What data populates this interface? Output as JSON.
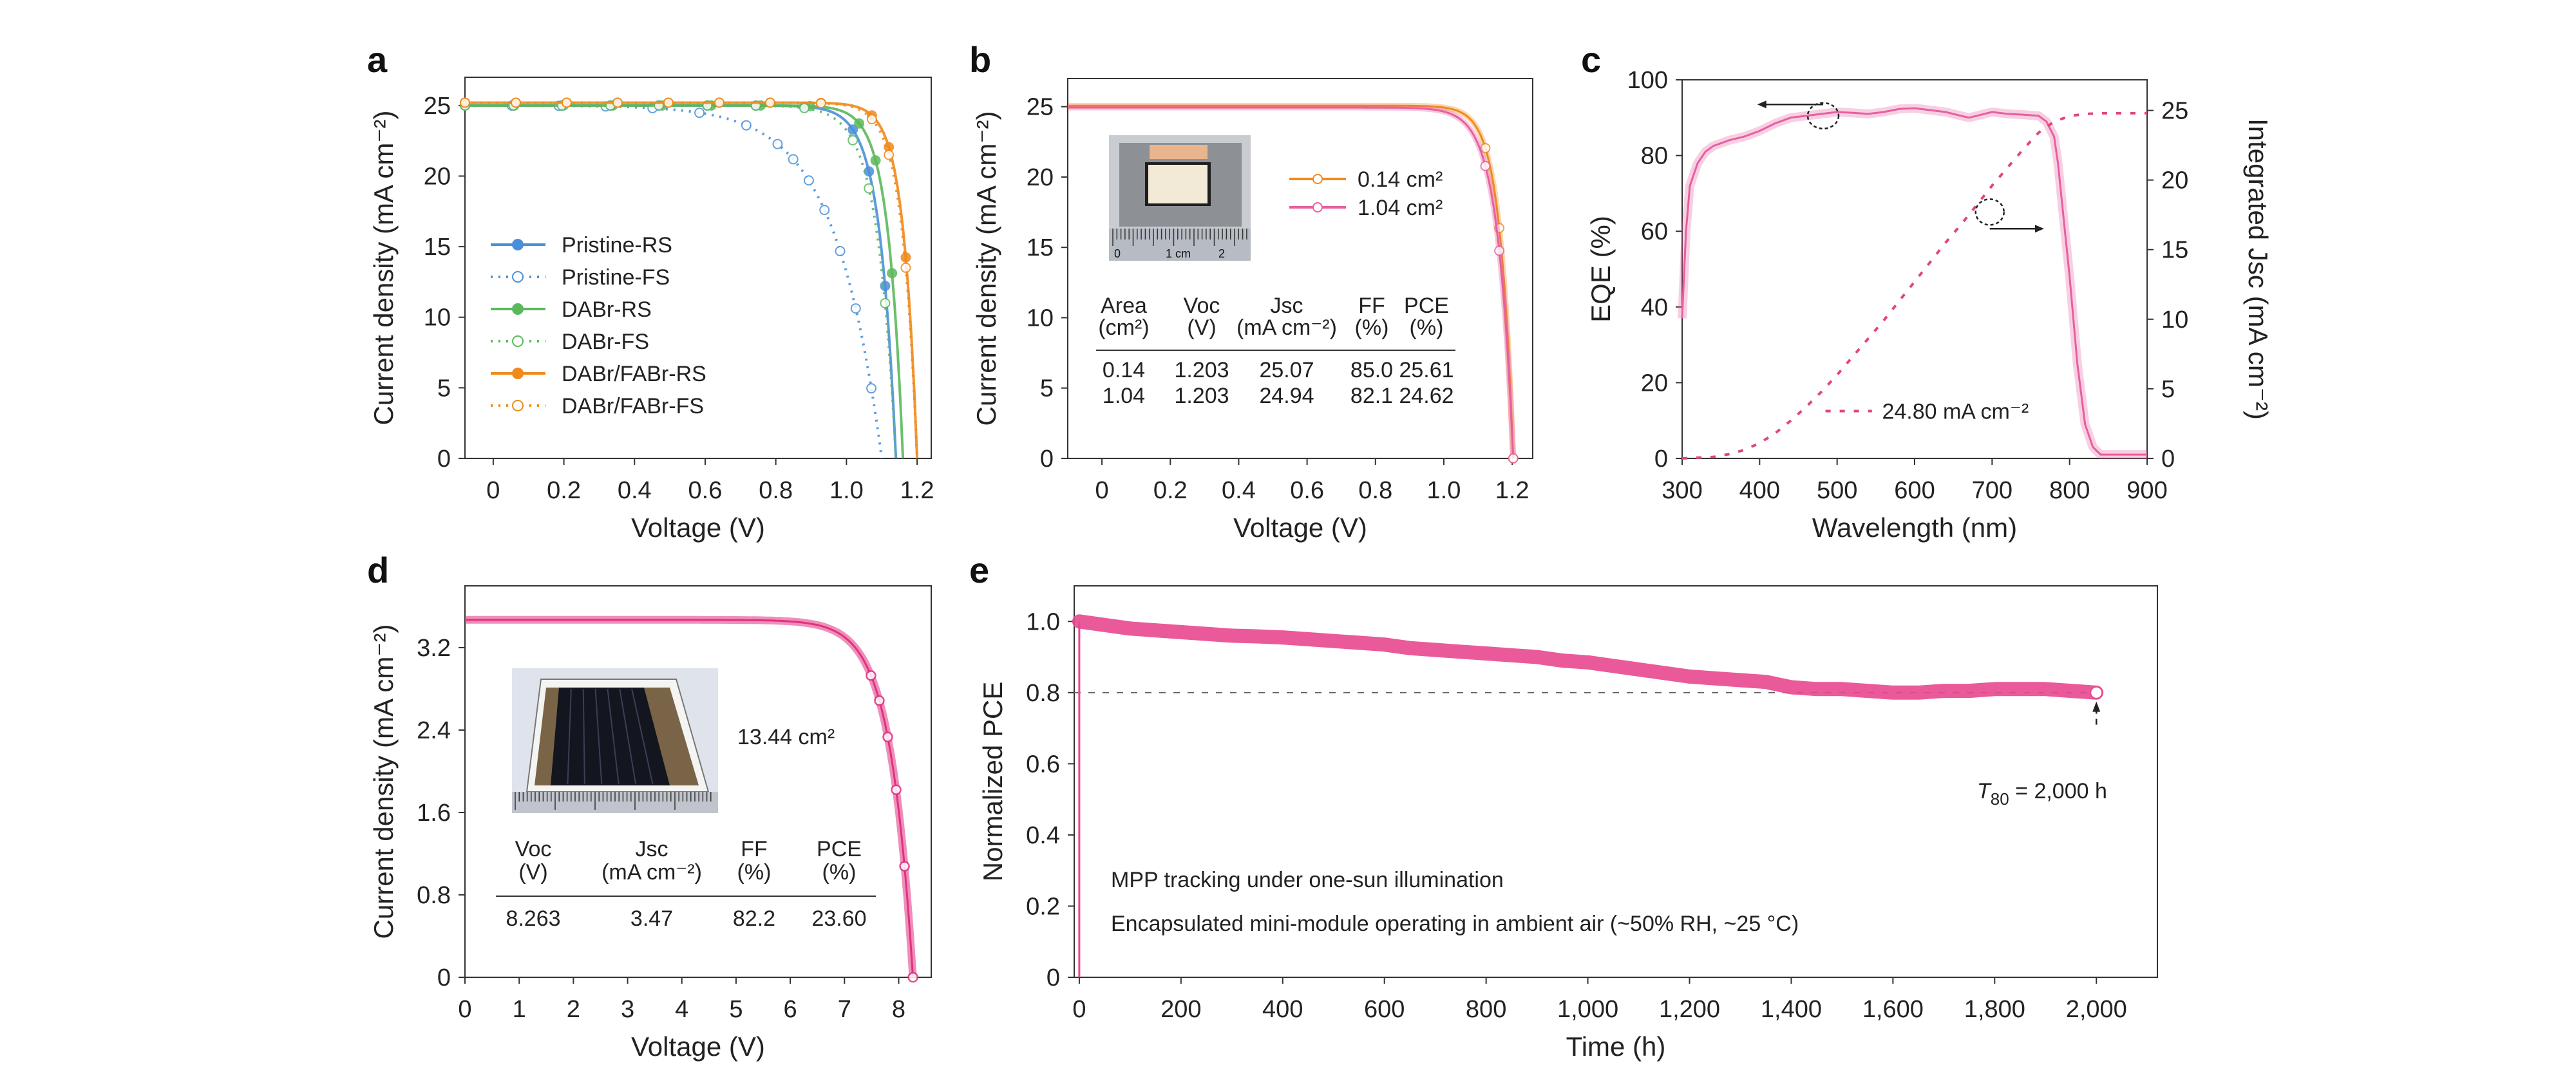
{
  "chart_data": [
    {
      "panel": "a",
      "type": "line",
      "xlabel": "Voltage (V)",
      "ylabel": "Current density (mA cm⁻²)",
      "xlim": [
        -0.08,
        1.24
      ],
      "ylim": [
        0,
        27
      ],
      "xticks": [
        "0",
        "0.2",
        "0.4",
        "0.6",
        "0.8",
        "1.0",
        "1.2"
      ],
      "xtick_values": [
        0,
        0.2,
        0.4,
        0.6,
        0.8,
        1.0,
        1.2
      ],
      "yticks": [
        "0",
        "5",
        "10",
        "15",
        "20",
        "25"
      ],
      "ytick_values": [
        0,
        5,
        10,
        15,
        20,
        25
      ],
      "legend_position": "center-left",
      "series": [
        {
          "name": "Pristine-RS",
          "color": "#4a90d9",
          "style": "solid",
          "marker": "filled",
          "jsc": 25.0,
          "voc": 1.14,
          "knee": 0.95,
          "sharp": 14
        },
        {
          "name": "Pristine-FS",
          "color": "#4a90d9",
          "style": "dotted",
          "marker": "open",
          "jsc": 25.0,
          "voc": 1.1,
          "knee": 0.55,
          "sharp": 5
        },
        {
          "name": "DABr-RS",
          "color": "#5cb85c",
          "style": "solid",
          "marker": "filled",
          "jsc": 25.0,
          "voc": 1.16,
          "knee": 1.0,
          "sharp": 16
        },
        {
          "name": "DABr-FS",
          "color": "#5cb85c",
          "style": "dotted",
          "marker": "open",
          "jsc": 25.0,
          "voc": 1.14,
          "knee": 0.95,
          "sharp": 13
        },
        {
          "name": "DABr/FABr-RS",
          "color": "#f08a1c",
          "style": "solid",
          "marker": "filled",
          "jsc": 25.2,
          "voc": 1.2,
          "knee": 1.05,
          "sharp": 18
        },
        {
          "name": "DABr/FABr-FS",
          "color": "#f08a1c",
          "style": "dotted",
          "marker": "open",
          "jsc": 25.2,
          "voc": 1.2,
          "knee": 1.03,
          "sharp": 17
        }
      ]
    },
    {
      "panel": "b",
      "type": "line",
      "xlabel": "Voltage (V)",
      "ylabel": "Current density (mA cm⁻²)",
      "xlim": [
        -0.1,
        1.26
      ],
      "ylim": [
        0,
        27
      ],
      "xticks": [
        "0",
        "0.2",
        "0.4",
        "0.6",
        "0.8",
        "1.0",
        "1.2"
      ],
      "xtick_values": [
        0,
        0.2,
        0.4,
        0.6,
        0.8,
        1.0,
        1.2
      ],
      "yticks": [
        "0",
        "5",
        "10",
        "15",
        "20",
        "25"
      ],
      "ytick_values": [
        0,
        5,
        10,
        15,
        20,
        25
      ],
      "legend_position": "top-right",
      "series": [
        {
          "name": "0.14 cm²",
          "color": "#f08a1c",
          "jsc": 25.07,
          "voc": 1.203,
          "knee": 1.05,
          "sharp": 20
        },
        {
          "name": "1.04 cm²",
          "color": "#e75fa0",
          "jsc": 24.94,
          "voc": 1.203,
          "knee": 1.02,
          "sharp": 17
        }
      ],
      "inset_photo": "device-photo-ruler",
      "inset_ruler_labels": [
        "0",
        "1 cm",
        "2"
      ],
      "table": {
        "headers": [
          [
            "Area",
            "(cm²)"
          ],
          [
            "Voc",
            "(V)"
          ],
          [
            "Jsc",
            "(mA cm⁻²)"
          ],
          [
            "FF",
            "(%)"
          ],
          [
            "PCE",
            "(%)"
          ]
        ],
        "rows": [
          [
            "0.14",
            "1.203",
            "25.07",
            "85.0",
            "25.61"
          ],
          [
            "1.04",
            "1.203",
            "24.94",
            "82.1",
            "24.62"
          ]
        ]
      }
    },
    {
      "panel": "c",
      "type": "line",
      "xlabel": "Wavelength (nm)",
      "ylabel": "EQE (%)",
      "y2label": "Integrated Jsc (mA cm⁻²)",
      "xlim": [
        300,
        900
      ],
      "ylim": [
        0,
        100
      ],
      "y2lim": [
        0,
        27.2
      ],
      "xticks": [
        "300",
        "400",
        "500",
        "600",
        "700",
        "800",
        "900"
      ],
      "xtick_values": [
        300,
        400,
        500,
        600,
        700,
        800,
        900
      ],
      "yticks": [
        "0",
        "20",
        "40",
        "60",
        "80",
        "100"
      ],
      "ytick_values": [
        0,
        20,
        40,
        60,
        80,
        100
      ],
      "y2ticks": [
        "0",
        "5",
        "10",
        "15",
        "20",
        "25"
      ],
      "y2tick_values": [
        0,
        5,
        10,
        15,
        20,
        25
      ],
      "series": [
        {
          "name": "EQE",
          "axis": "left",
          "color": "#e75fa0",
          "x": [
            300,
            305,
            310,
            320,
            330,
            340,
            360,
            380,
            400,
            420,
            440,
            460,
            480,
            500,
            520,
            540,
            560,
            580,
            600,
            620,
            640,
            660,
            670,
            680,
            700,
            720,
            740,
            760,
            770,
            780,
            785,
            790,
            800,
            810,
            820,
            830,
            840,
            850,
            870,
            900
          ],
          "y": [
            37,
            60,
            72,
            78,
            81,
            82.5,
            84,
            85,
            86.5,
            88.5,
            90,
            90.5,
            91,
            91.5,
            91.3,
            91,
            91.5,
            92.3,
            92.5,
            92,
            91.5,
            90.5,
            90,
            90.5,
            91.5,
            91,
            90.8,
            90.5,
            89,
            85,
            78,
            68,
            48,
            25,
            9,
            3,
            1,
            1,
            1,
            1
          ]
        },
        {
          "name": "Integrated Jsc",
          "axis": "right",
          "style": "dashed",
          "color": "#e0457f",
          "x": [
            300,
            340,
            360,
            380,
            400,
            420,
            440,
            460,
            480,
            500,
            520,
            540,
            560,
            580,
            600,
            620,
            640,
            660,
            680,
            700,
            720,
            740,
            760,
            780,
            800,
            820,
            840,
            900
          ],
          "y": [
            0,
            0.1,
            0.3,
            0.6,
            1.1,
            1.8,
            2.7,
            3.7,
            4.8,
            6.0,
            7.3,
            8.6,
            9.9,
            11.3,
            12.7,
            14.1,
            15.5,
            16.8,
            18.2,
            19.6,
            20.9,
            22.2,
            23.4,
            24.2,
            24.6,
            24.75,
            24.8,
            24.8
          ]
        }
      ],
      "annotations": [
        "24.80 mA cm⁻²"
      ]
    },
    {
      "panel": "d",
      "type": "line",
      "xlabel": "Voltage (V)",
      "ylabel": "Current density (mA cm⁻²)",
      "xlim": [
        0,
        8.6
      ],
      "ylim": [
        0,
        3.8
      ],
      "xticks": [
        "0",
        "1",
        "2",
        "3",
        "4",
        "5",
        "6",
        "7",
        "8"
      ],
      "xtick_values": [
        0,
        1,
        2,
        3,
        4,
        5,
        6,
        7,
        8
      ],
      "yticks": [
        "0",
        "0.8",
        "1.6",
        "2.4",
        "3.2"
      ],
      "ytick_values": [
        0,
        0.8,
        1.6,
        2.4,
        3.2
      ],
      "series": [
        {
          "name": "13.44 cm²",
          "color": "#e0317f",
          "jsc": 3.47,
          "voc": 8.263,
          "knee": 7.0,
          "sharp": 2.2
        }
      ],
      "inset_photo": "mini-module-photo-ruler",
      "area_label": "13.44 cm²",
      "table": {
        "headers": [
          [
            "Voc",
            "(V)"
          ],
          [
            "Jsc",
            "(mA cm⁻²)"
          ],
          [
            "FF",
            "(%)"
          ],
          [
            "PCE",
            "(%)"
          ]
        ],
        "rows": [
          [
            "8.263",
            "3.47",
            "82.2",
            "23.60"
          ]
        ]
      }
    },
    {
      "panel": "e",
      "type": "line",
      "xlabel": "Time (h)",
      "ylabel": "Normalized PCE",
      "xlim": [
        -10,
        2120
      ],
      "ylim": [
        0,
        1.1
      ],
      "xticks": [
        "0",
        "200",
        "400",
        "600",
        "800",
        "1,000",
        "1,200",
        "1,400",
        "1,600",
        "1,800",
        "2,000"
      ],
      "xtick_values": [
        0,
        200,
        400,
        600,
        800,
        1000,
        1200,
        1400,
        1600,
        1800,
        2000
      ],
      "yticks": [
        "0",
        "0.2",
        "0.4",
        "0.6",
        "0.8",
        "1.0"
      ],
      "ytick_values": [
        0,
        0.2,
        0.4,
        0.6,
        0.8,
        1.0
      ],
      "reference_line": 0.8,
      "series": [
        {
          "name": "Normalized PCE",
          "color": "#e8488f",
          "x": [
            0,
            50,
            100,
            150,
            200,
            250,
            300,
            350,
            400,
            450,
            500,
            550,
            600,
            650,
            700,
            750,
            800,
            850,
            900,
            950,
            1000,
            1050,
            1100,
            1150,
            1200,
            1250,
            1300,
            1350,
            1400,
            1450,
            1500,
            1550,
            1600,
            1650,
            1700,
            1750,
            1800,
            1850,
            1900,
            1950,
            2000
          ],
          "y": [
            1.0,
            0.99,
            0.98,
            0.975,
            0.97,
            0.965,
            0.96,
            0.958,
            0.955,
            0.95,
            0.945,
            0.94,
            0.935,
            0.925,
            0.92,
            0.915,
            0.91,
            0.905,
            0.9,
            0.89,
            0.885,
            0.875,
            0.865,
            0.855,
            0.845,
            0.84,
            0.835,
            0.83,
            0.815,
            0.81,
            0.81,
            0.805,
            0.8,
            0.8,
            0.805,
            0.805,
            0.81,
            0.81,
            0.81,
            0.805,
            0.8
          ]
        }
      ],
      "annotations": [
        "MPP tracking under one-sun illumination",
        "Encapsulated mini-module operating in ambient air (~50% RH, ~25 °C)",
        "T80 = 2,000 h"
      ]
    }
  ],
  "labels": {
    "a": "a",
    "b": "b",
    "c": "c",
    "d": "d",
    "e": "e",
    "c_annotation": "24.80 mA cm⁻²",
    "d_area": "13.44 cm²",
    "e_note1": "MPP tracking under one-sun illumination",
    "e_note2": "Encapsulated mini-module operating in ambient air (~50% RH, ~25 °C)",
    "e_t80_sub": "80",
    "e_t80_rest": " = 2,000 h",
    "e_t80_T": "T"
  }
}
